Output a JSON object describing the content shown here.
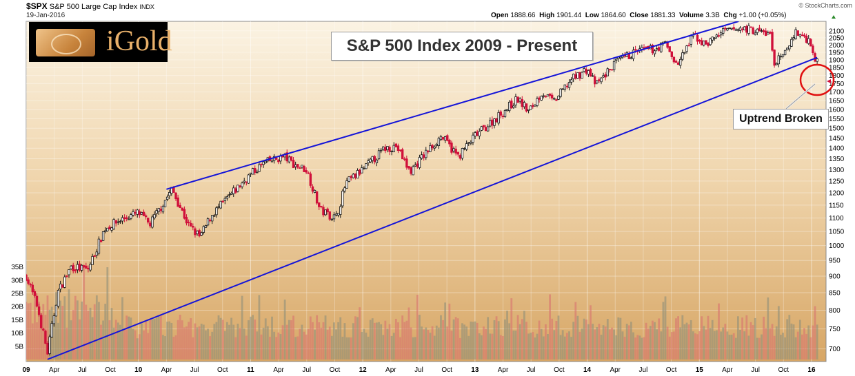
{
  "header": {
    "ticker": "$SPX",
    "name": "S&P 500 Large Cap Index",
    "exchange": "INDX",
    "date": "19-Jan-2016",
    "open_label": "Open",
    "open": "1888.66",
    "high_label": "High",
    "high": "1901.44",
    "low_label": "Low",
    "low": "1864.60",
    "close_label": "Close",
    "close": "1881.33",
    "volume_label": "Volume",
    "volume": "3.3B",
    "chg_label": "Chg",
    "chg": "+1.00 (+0.05%)",
    "credit": "© StockCharts.com"
  },
  "logo": {
    "text": "iGold"
  },
  "colors": {
    "up": "#141414",
    "down": "#d0103a",
    "channel": "#1414d8",
    "circle": "#e01010",
    "bg_top": "#fbf3e3",
    "bg_bottom": "#d8a868"
  },
  "chart_data": {
    "type": "candlestick",
    "title": "S&P 500 Index 2009 - Present",
    "annotation": "Uptrend Broken",
    "y_scale": "log",
    "ylim": [
      670,
      2170
    ],
    "y_ticks": [
      700,
      750,
      800,
      850,
      900,
      950,
      1000,
      1050,
      1100,
      1150,
      1200,
      1250,
      1300,
      1350,
      1400,
      1450,
      1500,
      1550,
      1600,
      1650,
      1700,
      1750,
      1800,
      1850,
      1900,
      1950,
      2000,
      2050,
      2100
    ],
    "volume_ticks": [
      "5B",
      "10B",
      "15B",
      "20B",
      "25B",
      "30B",
      "35B"
    ],
    "volume_ylim_B": [
      0,
      37
    ],
    "x_range": [
      2009.0,
      2016.08
    ],
    "x_ticks": [
      {
        "label": "09",
        "t": 2009.0,
        "year": true
      },
      {
        "label": "Apr",
        "t": 2009.25
      },
      {
        "label": "Jul",
        "t": 2009.5
      },
      {
        "label": "Oct",
        "t": 2009.75
      },
      {
        "label": "10",
        "t": 2010.0,
        "year": true
      },
      {
        "label": "Apr",
        "t": 2010.25
      },
      {
        "label": "Jul",
        "t": 2010.5
      },
      {
        "label": "Oct",
        "t": 2010.75
      },
      {
        "label": "11",
        "t": 2011.0,
        "year": true
      },
      {
        "label": "Apr",
        "t": 2011.25
      },
      {
        "label": "Jul",
        "t": 2011.5
      },
      {
        "label": "Oct",
        "t": 2011.75
      },
      {
        "label": "12",
        "t": 2012.0,
        "year": true
      },
      {
        "label": "Apr",
        "t": 2012.25
      },
      {
        "label": "Jul",
        "t": 2012.5
      },
      {
        "label": "Oct",
        "t": 2012.75
      },
      {
        "label": "13",
        "t": 2013.0,
        "year": true
      },
      {
        "label": "Apr",
        "t": 2013.25
      },
      {
        "label": "Jul",
        "t": 2013.5
      },
      {
        "label": "Oct",
        "t": 2013.75
      },
      {
        "label": "14",
        "t": 2014.0,
        "year": true
      },
      {
        "label": "Apr",
        "t": 2014.25
      },
      {
        "label": "Jul",
        "t": 2014.5
      },
      {
        "label": "Oct",
        "t": 2014.75
      },
      {
        "label": "15",
        "t": 2015.0,
        "year": true
      },
      {
        "label": "Apr",
        "t": 2015.25
      },
      {
        "label": "Jul",
        "t": 2015.5
      },
      {
        "label": "Oct",
        "t": 2015.75
      },
      {
        "label": "16",
        "t": 2016.0,
        "year": true
      }
    ],
    "price_path": [
      [
        2009.0,
        900
      ],
      [
        2009.1,
        810
      ],
      [
        2009.19,
        690
      ],
      [
        2009.28,
        850
      ],
      [
        2009.4,
        930
      ],
      [
        2009.55,
        920
      ],
      [
        2009.7,
        1060
      ],
      [
        2009.85,
        1095
      ],
      [
        2010.0,
        1120
      ],
      [
        2010.1,
        1075
      ],
      [
        2010.3,
        1215
      ],
      [
        2010.45,
        1070
      ],
      [
        2010.55,
        1030
      ],
      [
        2010.65,
        1110
      ],
      [
        2010.8,
        1180
      ],
      [
        2011.0,
        1280
      ],
      [
        2011.12,
        1330
      ],
      [
        2011.3,
        1360
      ],
      [
        2011.4,
        1320
      ],
      [
        2011.5,
        1300
      ],
      [
        2011.62,
        1130
      ],
      [
        2011.76,
        1100
      ],
      [
        2011.85,
        1240
      ],
      [
        2012.0,
        1300
      ],
      [
        2012.2,
        1400
      ],
      [
        2012.3,
        1410
      ],
      [
        2012.42,
        1290
      ],
      [
        2012.55,
        1370
      ],
      [
        2012.7,
        1460
      ],
      [
        2012.85,
        1360
      ],
      [
        2013.0,
        1460
      ],
      [
        2013.2,
        1560
      ],
      [
        2013.38,
        1660
      ],
      [
        2013.48,
        1590
      ],
      [
        2013.6,
        1700
      ],
      [
        2013.7,
        1640
      ],
      [
        2013.85,
        1770
      ],
      [
        2014.0,
        1840
      ],
      [
        2014.08,
        1740
      ],
      [
        2014.25,
        1880
      ],
      [
        2014.45,
        1960
      ],
      [
        2014.6,
        1970
      ],
      [
        2014.7,
        2010
      ],
      [
        2014.8,
        1860
      ],
      [
        2014.95,
        2070
      ],
      [
        2015.05,
        2000
      ],
      [
        2015.2,
        2090
      ],
      [
        2015.4,
        2120
      ],
      [
        2015.55,
        2090
      ],
      [
        2015.63,
        2080
      ],
      [
        2015.66,
        1880
      ],
      [
        2015.75,
        1920
      ],
      [
        2015.85,
        2090
      ],
      [
        2015.95,
        2050
      ],
      [
        2016.0,
        2010
      ],
      [
        2016.03,
        1900
      ],
      [
        2016.05,
        1880
      ]
    ],
    "channel": {
      "upper": [
        [
          2010.25,
          1215
        ],
        [
          2015.35,
          2170
        ]
      ],
      "lower": [
        [
          2009.19,
          675
        ],
        [
          2016.05,
          1915
        ]
      ]
    }
  }
}
